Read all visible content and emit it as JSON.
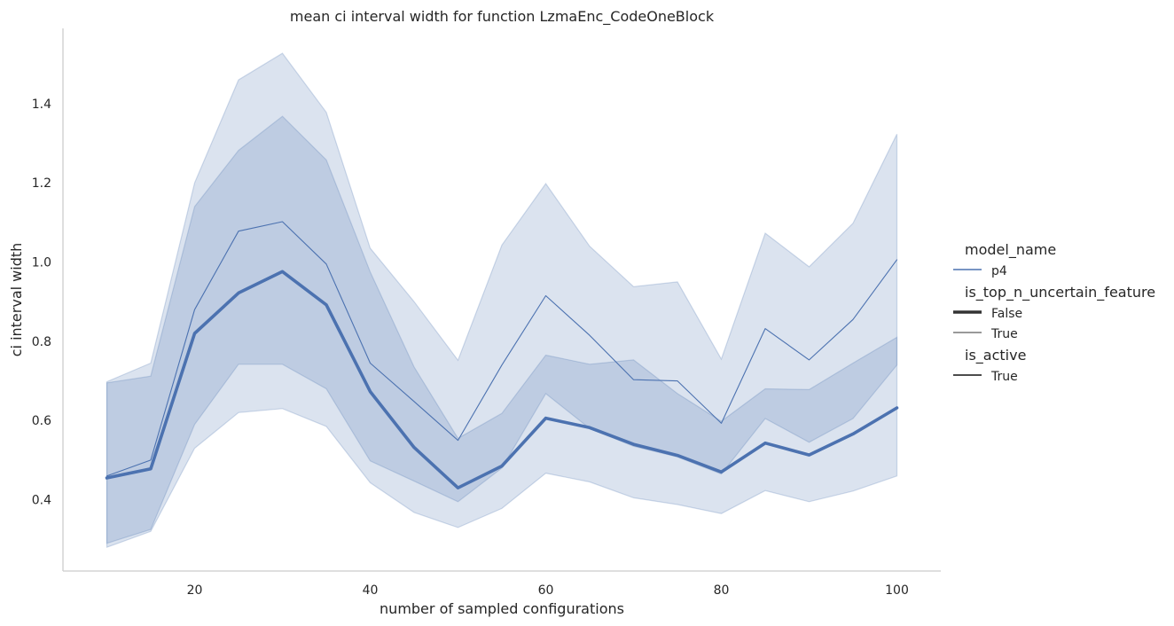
{
  "chart_data": {
    "type": "line",
    "title": "mean ci interval width for function LzmaEnc_CodeOneBlock",
    "xlabel": "number of sampled configurations",
    "ylabel": "ci interval width",
    "xlim": [
      5,
      105
    ],
    "ylim": [
      0.22,
      1.59
    ],
    "xticks": [
      20,
      40,
      60,
      80,
      100
    ],
    "yticks": [
      0.4,
      0.6,
      0.8,
      1.0,
      1.2,
      1.4
    ],
    "grid": false,
    "legend_position": "right",
    "x": [
      10,
      15,
      20,
      25,
      30,
      35,
      40,
      45,
      50,
      55,
      60,
      65,
      70,
      75,
      80,
      85,
      90,
      95,
      100
    ],
    "series": [
      {
        "is_top_n_uncertain_feature": "False",
        "style": "thick",
        "color": "#4c72b0",
        "values": [
          0.455,
          0.478,
          0.82,
          0.922,
          0.976,
          0.892,
          0.673,
          0.532,
          0.43,
          0.485,
          0.606,
          0.582,
          0.54,
          0.512,
          0.47,
          0.543,
          0.513,
          0.566,
          0.632
        ],
        "ci_low": [
          0.29,
          0.325,
          0.59,
          0.742,
          0.742,
          0.68,
          0.498,
          0.447,
          0.395,
          0.48,
          0.668,
          0.58,
          0.535,
          0.508,
          0.465,
          0.605,
          0.545,
          0.605,
          0.74
        ],
        "ci_high": [
          0.695,
          0.712,
          1.14,
          1.282,
          1.368,
          1.258,
          0.975,
          0.735,
          0.555,
          0.618,
          0.765,
          0.742,
          0.753,
          0.668,
          0.598,
          0.68,
          0.678,
          0.745,
          0.81
        ]
      },
      {
        "is_top_n_uncertain_feature": "True",
        "style": "thin",
        "color": "#4c72b0",
        "values": [
          0.46,
          0.5,
          0.88,
          1.078,
          1.102,
          0.995,
          0.745,
          0.648,
          0.55,
          0.74,
          0.915,
          0.815,
          0.703,
          0.7,
          0.593,
          0.832,
          0.753,
          0.855,
          1.006
        ],
        "ci_low": [
          0.28,
          0.32,
          0.53,
          0.62,
          0.63,
          0.585,
          0.443,
          0.368,
          0.33,
          0.378,
          0.467,
          0.445,
          0.405,
          0.388,
          0.365,
          0.423,
          0.395,
          0.422,
          0.46
        ],
        "ci_high": [
          0.698,
          0.745,
          1.2,
          1.46,
          1.527,
          1.378,
          1.035,
          0.9,
          0.752,
          1.043,
          1.198,
          1.04,
          0.938,
          0.95,
          0.755,
          1.073,
          0.988,
          1.098,
          1.323
        ]
      }
    ]
  },
  "legend": {
    "groups": [
      {
        "title": "model_name",
        "entries": [
          {
            "label": "p4",
            "width": 1.5
          }
        ]
      },
      {
        "title": "is_top_n_uncertain_feature",
        "entries": [
          {
            "label": "False",
            "width": 3.5,
            "color": "#333333"
          },
          {
            "label": "True",
            "width": 0.9,
            "color": "#333333"
          }
        ]
      },
      {
        "title": "is_active",
        "entries": [
          {
            "label": "True",
            "width": 1.8,
            "color": "#333333"
          }
        ]
      }
    ]
  }
}
